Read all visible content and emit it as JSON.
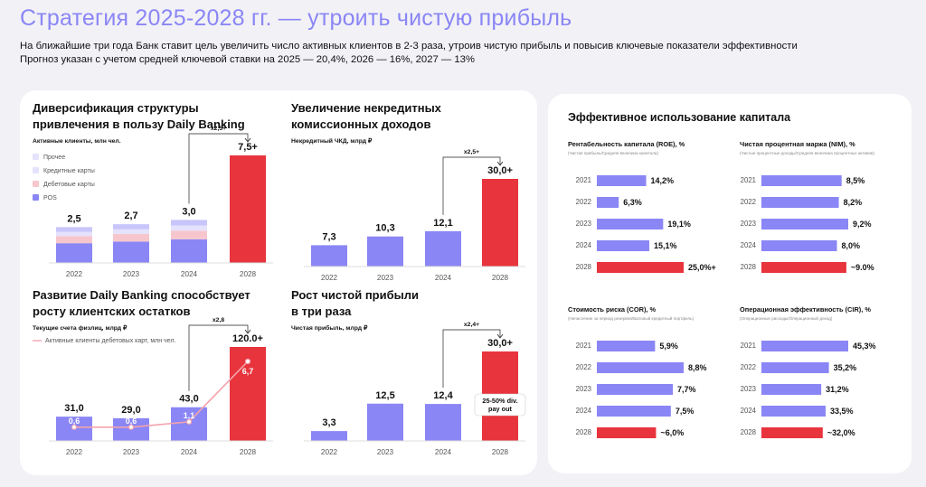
{
  "title": "Стратегия 2025-2028 гг. — утроить чистую прибыль",
  "subtitle1": "На ближайшие три года Банк ставит цель увеличить число активных клиентов в 2-3 раза, утроив чистую прибыль и повысив ключевые показатели эффективности",
  "subtitle2": "Прогноз указан с учетом средней ключевой ставки на 2025 — 20,4%, 2026 — 16%, 2027 — 13%",
  "colors": {
    "accent": "#8a86f5",
    "bar": "#8a86f5",
    "highlight": "#e8343c",
    "light_purple": "#c8c5fb",
    "pink": "#f7c6cd",
    "lavender": "#e4e2fc",
    "text": "#111111",
    "background": "#f2f1f6",
    "card": "#ffffff"
  },
  "chart_data": [
    {
      "type": "bar",
      "title_lines": [
        "Диверсификация структуры",
        "привлечения в пользу Daily Banking"
      ],
      "ylabel": "Активные клиенты, млн чел.",
      "categories": [
        "2022",
        "2023",
        "2024",
        "2028"
      ],
      "value_labels": [
        "2,5",
        "2,7",
        "3,0",
        "7,5+"
      ],
      "values": [
        2.5,
        2.7,
        3.0,
        7.5
      ],
      "stack_legend": [
        "Прочее",
        "Кредитные карты",
        "Дебетовые карты",
        "POS"
      ],
      "multiplier": "x2,5+",
      "highlight_index": 3
    },
    {
      "type": "bar",
      "title_lines": [
        "Увеличение некредитных",
        "комиссионных доходов"
      ],
      "ylabel": "Некредитный ЧКД, млрд ₽",
      "categories": [
        "2022",
        "2023",
        "2024",
        "2028"
      ],
      "value_labels": [
        "7,3",
        "10,3",
        "12,1",
        "30,0+"
      ],
      "values": [
        7.3,
        10.3,
        12.1,
        30.0
      ],
      "multiplier": "x2,5+",
      "highlight_index": 3
    },
    {
      "type": "bar",
      "title_lines": [
        "Развитие Daily Banking способствует",
        "росту клиентских остатков"
      ],
      "ylabel": "Текущие счета физлиц, млрд ₽",
      "legend_line": "Активные клиенты дебетовых карт, млн чел.",
      "categories": [
        "2022",
        "2023",
        "2024",
        "2028"
      ],
      "value_labels": [
        "31,0",
        "29,0",
        "43,0",
        "120.0+"
      ],
      "values": [
        31.0,
        29.0,
        43.0,
        120.0
      ],
      "line_labels": [
        "0,6",
        "0,6",
        "1,1",
        "6,7"
      ],
      "line_values": [
        0.6,
        0.6,
        1.1,
        6.7
      ],
      "multiplier": "x2,8",
      "highlight_index": 3
    },
    {
      "type": "bar",
      "title_lines": [
        "Рост чистой прибыли",
        "в три раза"
      ],
      "ylabel": "Чистая прибыль, млрд ₽",
      "categories": [
        "2022",
        "2023",
        "2024",
        "2028"
      ],
      "value_labels": [
        "3,3",
        "12,5",
        "12,4",
        "30,0+"
      ],
      "values": [
        3.3,
        12.5,
        12.4,
        30.0
      ],
      "multiplier": "x2,4+",
      "annotation_lines": [
        "25-50% div.",
        "pay out"
      ],
      "highlight_index": 3
    }
  ],
  "right_panel": {
    "title": "Эффективное использование капитала",
    "charts": [
      {
        "type": "bar",
        "orientation": "horizontal",
        "title": "Рентабельность капитала (ROE), %",
        "note": "(Чистая прибыль/Средняя величина капитала)",
        "categories": [
          "2021",
          "2022",
          "2023",
          "2024",
          "2028"
        ],
        "values": [
          14.2,
          6.3,
          19.1,
          15.1,
          25.0
        ],
        "labels": [
          "14,2%",
          "6,3%",
          "19,1%",
          "15,1%",
          "25,0%+"
        ]
      },
      {
        "type": "bar",
        "orientation": "horizontal",
        "title": "Чистая процентная маржа (NIM), %",
        "note": "(Чистые процентные доходы/Средняя величина процентных активов)",
        "categories": [
          "2021",
          "2022",
          "2023",
          "2024",
          "2028"
        ],
        "values": [
          8.5,
          8.2,
          9.2,
          8.0,
          9.0
        ],
        "labels": [
          "8,5%",
          "8,2%",
          "9,2%",
          "8,0%",
          "~9.0%"
        ]
      },
      {
        "type": "bar",
        "orientation": "horizontal",
        "title": "Стоимость риска (COR), %",
        "note": "(Начисление за период резервов/Валовый кредитный портфель)",
        "categories": [
          "2021",
          "2022",
          "2023",
          "2024",
          "2028"
        ],
        "values": [
          5.9,
          8.8,
          7.7,
          7.5,
          6.0
        ],
        "labels": [
          "5,9%",
          "8,8%",
          "7,7%",
          "7,5%",
          "~6,0%"
        ]
      },
      {
        "type": "bar",
        "orientation": "horizontal",
        "title": "Операционная эффективность (CIR), %",
        "note": "(Операционные расходы/Операционный доход)",
        "categories": [
          "2021",
          "2022",
          "2023",
          "2024",
          "2028"
        ],
        "values": [
          45.3,
          35.2,
          31.2,
          33.5,
          32.0
        ],
        "labels": [
          "45,3%",
          "35,2%",
          "31,2%",
          "33,5%",
          "~32,0%"
        ]
      }
    ]
  }
}
